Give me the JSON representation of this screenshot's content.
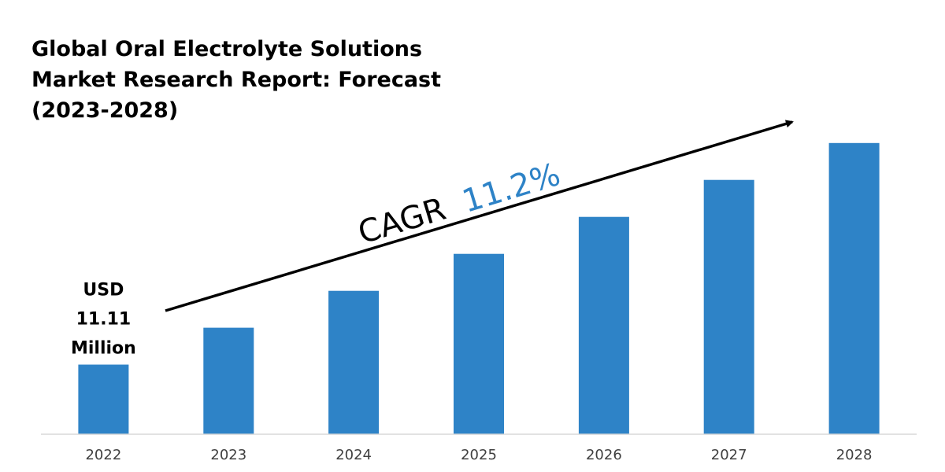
{
  "chart_data": {
    "type": "bar",
    "title_lines": [
      "Global Oral Electrolyte Solutions",
      "Market Research Report: Forecast",
      "(2023-2028)"
    ],
    "categories": [
      "2022",
      "2023",
      "2024",
      "2025",
      "2026",
      "2027",
      "2028"
    ],
    "values": [
      11.11,
      17.0,
      22.9,
      28.8,
      34.7,
      40.6,
      46.5
    ],
    "ylim": [
      0,
      53
    ],
    "xlabel": "",
    "ylabel": "",
    "grid": false,
    "legend": "none",
    "bar_color": "#2e83c7",
    "first_bar_label": [
      "USD",
      "11.11",
      "Million"
    ],
    "cagr": {
      "prefix": "CAGR",
      "value": "11.2%",
      "prefix_color": "#000000",
      "value_color": "#2e83c7"
    }
  }
}
